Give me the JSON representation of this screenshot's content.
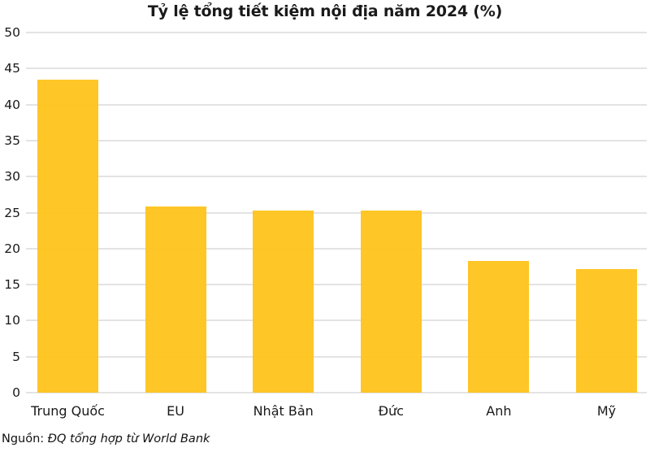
{
  "chart_data": {
    "type": "bar",
    "title": "Tỷ lệ tổng tiết kiệm nội địa năm 2024 (%)",
    "categories": [
      "Trung Quốc",
      "EU",
      "Nhật Bản",
      "Đức",
      "Anh",
      "Mỹ"
    ],
    "values": [
      43.4,
      25.9,
      25.3,
      25.3,
      18.3,
      17.1
    ],
    "xlabel": "",
    "ylabel": "",
    "ylim": [
      0,
      50
    ],
    "yticks": [
      0,
      5,
      10,
      15,
      20,
      25,
      30,
      35,
      40,
      45,
      50
    ],
    "grid": true,
    "legend": "none",
    "bar_color": "#FEC41D",
    "gridline_color": "#e3e3e3",
    "text_color": "#1a1a1a"
  },
  "source": {
    "prefix": "Nguồn: ",
    "text": "ĐQ tổng hợp từ World Bank"
  }
}
